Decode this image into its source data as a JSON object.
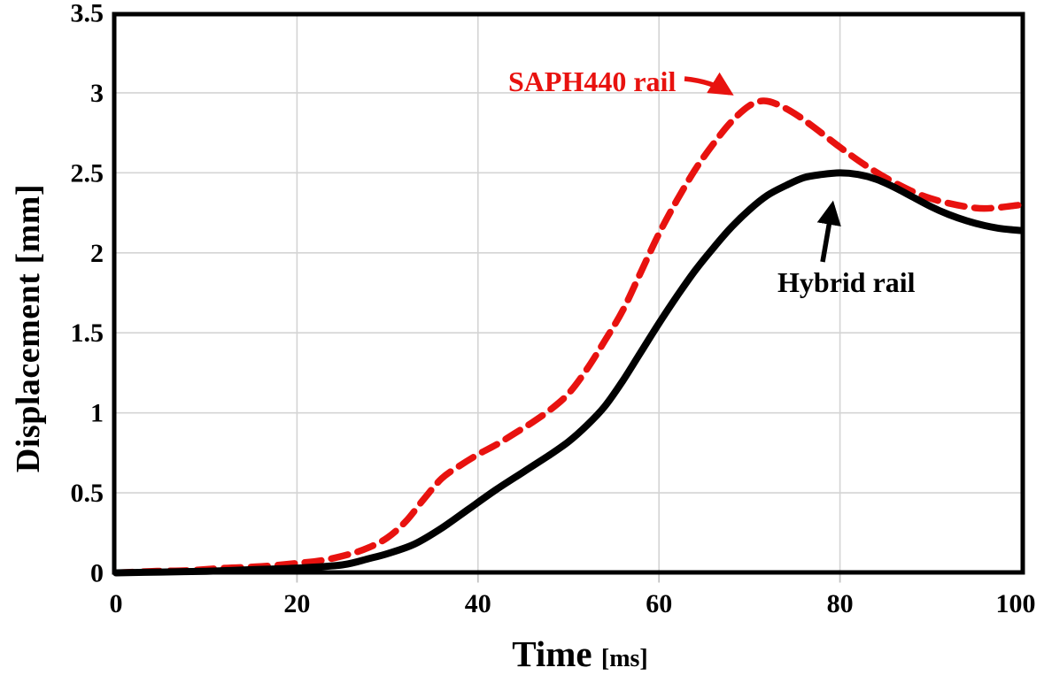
{
  "y_axis": {
    "label": "Displacement [mm]"
  },
  "x_axis": {
    "label": "Time",
    "unit": "[ms]"
  },
  "annotations": [
    {
      "text": "SAPH440 rail",
      "color": "#e8120f",
      "points_to": "SAPH440 rail curve"
    },
    {
      "text": "Hybrid rail",
      "color": "#000000",
      "points_to": "Hybrid rail curve"
    }
  ],
  "colors": {
    "grid": "#d4d4d4",
    "axis": "#000000",
    "background": "#ffffff",
    "saph440": "#e8120f",
    "hybrid": "#000000"
  },
  "chart_data": {
    "type": "line",
    "title": "",
    "xlabel": "Time [ms]",
    "ylabel": "Displacement [mm]",
    "xlim": [
      0,
      100
    ],
    "ylim": [
      0,
      3.5
    ],
    "x_ticks": [
      0,
      20,
      40,
      60,
      80,
      100
    ],
    "y_ticks": [
      0,
      0.5,
      1,
      1.5,
      2,
      2.5,
      3,
      3.5
    ],
    "grid": true,
    "legend_position": "inline-annotations",
    "series": [
      {
        "name": "SAPH440 rail",
        "color": "#e8120f",
        "line_style": "dashed",
        "peak": {
          "t": 71,
          "displacement": 2.95
        },
        "end_value": 2.3,
        "points": [
          [
            0,
            0
          ],
          [
            4,
            0.01
          ],
          [
            8,
            0.015
          ],
          [
            12,
            0.03
          ],
          [
            16,
            0.04
          ],
          [
            20,
            0.06
          ],
          [
            23,
            0.08
          ],
          [
            26,
            0.12
          ],
          [
            28,
            0.16
          ],
          [
            30,
            0.22
          ],
          [
            32,
            0.32
          ],
          [
            34,
            0.46
          ],
          [
            36,
            0.59
          ],
          [
            38,
            0.67
          ],
          [
            40,
            0.74
          ],
          [
            42,
            0.8
          ],
          [
            44,
            0.87
          ],
          [
            46,
            0.94
          ],
          [
            48,
            1.02
          ],
          [
            50,
            1.12
          ],
          [
            52,
            1.27
          ],
          [
            54,
            1.45
          ],
          [
            56,
            1.64
          ],
          [
            58,
            1.88
          ],
          [
            60,
            2.12
          ],
          [
            62,
            2.33
          ],
          [
            64,
            2.52
          ],
          [
            66,
            2.68
          ],
          [
            68,
            2.82
          ],
          [
            70,
            2.92
          ],
          [
            71.5,
            2.95
          ],
          [
            73,
            2.93
          ],
          [
            75,
            2.87
          ],
          [
            77,
            2.79
          ],
          [
            80,
            2.66
          ],
          [
            83,
            2.54
          ],
          [
            86,
            2.44
          ],
          [
            89,
            2.36
          ],
          [
            92,
            2.31
          ],
          [
            95,
            2.28
          ],
          [
            97,
            2.28
          ],
          [
            100,
            2.3
          ]
        ]
      },
      {
        "name": "Hybrid rail",
        "color": "#000000",
        "line_style": "solid",
        "peak": {
          "t": 80,
          "displacement": 2.5
        },
        "end_value": 2.14,
        "points": [
          [
            0,
            0
          ],
          [
            5,
            0.005
          ],
          [
            10,
            0.01
          ],
          [
            15,
            0.02
          ],
          [
            20,
            0.03
          ],
          [
            25,
            0.05
          ],
          [
            28,
            0.09
          ],
          [
            30,
            0.12
          ],
          [
            33,
            0.18
          ],
          [
            36,
            0.28
          ],
          [
            39,
            0.4
          ],
          [
            42,
            0.52
          ],
          [
            45,
            0.63
          ],
          [
            48,
            0.74
          ],
          [
            50,
            0.82
          ],
          [
            52,
            0.92
          ],
          [
            54,
            1.04
          ],
          [
            56,
            1.2
          ],
          [
            58,
            1.38
          ],
          [
            60,
            1.56
          ],
          [
            62,
            1.73
          ],
          [
            64,
            1.89
          ],
          [
            66,
            2.03
          ],
          [
            68,
            2.16
          ],
          [
            70,
            2.27
          ],
          [
            72,
            2.36
          ],
          [
            74,
            2.42
          ],
          [
            76,
            2.47
          ],
          [
            78,
            2.49
          ],
          [
            80,
            2.5
          ],
          [
            82,
            2.49
          ],
          [
            84,
            2.46
          ],
          [
            86,
            2.41
          ],
          [
            88,
            2.35
          ],
          [
            90,
            2.29
          ],
          [
            92,
            2.24
          ],
          [
            94,
            2.2
          ],
          [
            96,
            2.17
          ],
          [
            98,
            2.15
          ],
          [
            100,
            2.14
          ]
        ]
      }
    ]
  }
}
